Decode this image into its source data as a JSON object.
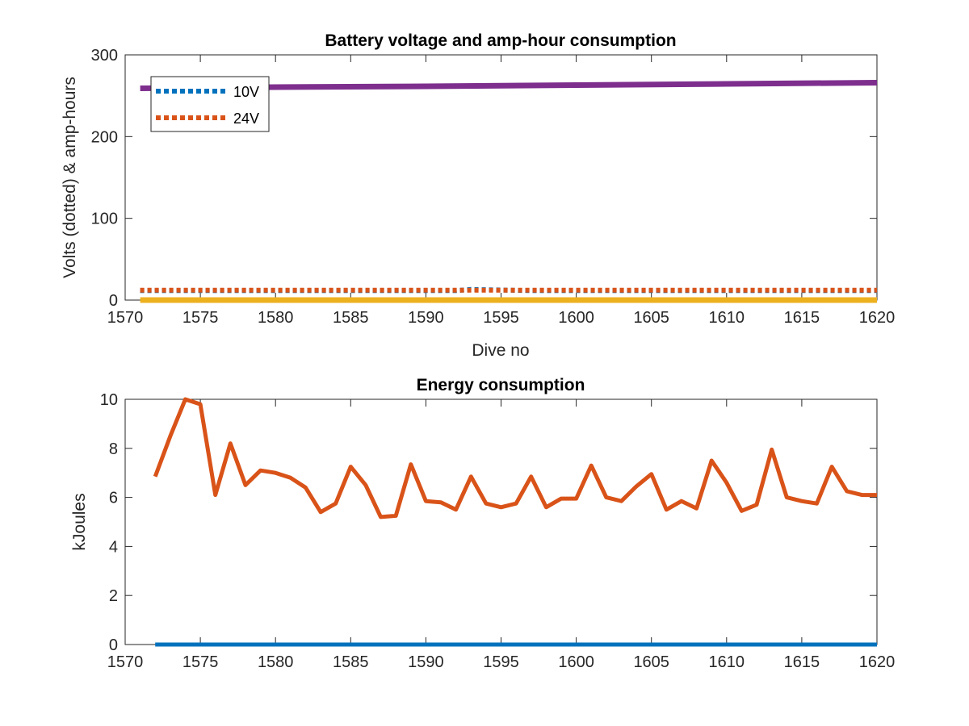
{
  "chart_data": [
    {
      "type": "line",
      "title": "Battery voltage and amp-hour consumption",
      "xlabel": "Dive no",
      "ylabel": "Volts (dotted) & amp-hours",
      "xlim": [
        1570,
        1620
      ],
      "ylim": [
        0,
        300
      ],
      "xticks": [
        1570,
        1575,
        1580,
        1585,
        1590,
        1595,
        1600,
        1605,
        1610,
        1615,
        1620
      ],
      "yticks": [
        0,
        100,
        200,
        300
      ],
      "legend_position": "top-left",
      "series": [
        {
          "name": "10V",
          "style": "dotted",
          "color": "#0072BD",
          "x": [
            1571,
            1592,
            1593,
            1597,
            1620
          ],
          "y": [
            11.5,
            11.5,
            13,
            11.5,
            11.5
          ]
        },
        {
          "name": "24V",
          "style": "dotted",
          "color": "#D95319",
          "x": [
            1571,
            1620
          ],
          "y": [
            12,
            12
          ]
        },
        {
          "style": "solid",
          "color": "#EDB120",
          "x": [
            1571,
            1620
          ],
          "y": [
            0,
            0
          ]
        },
        {
          "style": "solid",
          "color": "#7E2F8E",
          "x": [
            1571,
            1580,
            1590,
            1600,
            1610,
            1620
          ],
          "y": [
            259,
            260.5,
            261.5,
            263,
            264.5,
            266
          ]
        }
      ]
    },
    {
      "type": "line",
      "title": "Energy consumption",
      "xlabel": "",
      "ylabel": "kJoules",
      "xlim": [
        1570,
        1620
      ],
      "ylim": [
        0,
        10
      ],
      "xticks": [
        1570,
        1575,
        1580,
        1585,
        1590,
        1595,
        1600,
        1605,
        1610,
        1615,
        1620
      ],
      "yticks": [
        0,
        2,
        4,
        6,
        8,
        10
      ],
      "series": [
        {
          "style": "solid",
          "color": "#0072BD",
          "x": [
            1572,
            1620
          ],
          "y": [
            0,
            0
          ]
        },
        {
          "style": "solid",
          "color": "#D95319",
          "x": [
            1572,
            1573,
            1574,
            1575,
            1576,
            1577,
            1578,
            1579,
            1580,
            1581,
            1582,
            1583,
            1584,
            1585,
            1586,
            1587,
            1588,
            1589,
            1590,
            1591,
            1592,
            1593,
            1594,
            1595,
            1596,
            1597,
            1598,
            1599,
            1600,
            1601,
            1602,
            1603,
            1604,
            1605,
            1606,
            1607,
            1608,
            1609,
            1610,
            1611,
            1612,
            1613,
            1614,
            1615,
            1616,
            1617,
            1618,
            1619,
            1620
          ],
          "y": [
            6.85,
            8.5,
            10,
            9.8,
            6.1,
            8.2,
            6.5,
            7.1,
            7.0,
            6.8,
            6.4,
            5.4,
            5.75,
            7.25,
            6.5,
            5.2,
            5.25,
            7.35,
            5.85,
            5.8,
            5.5,
            6.85,
            5.75,
            5.6,
            5.75,
            6.85,
            5.6,
            5.95,
            5.95,
            7.3,
            6.0,
            5.85,
            6.45,
            6.95,
            5.5,
            5.85,
            5.55,
            7.5,
            6.6,
            5.45,
            5.7,
            7.95,
            6.0,
            5.85,
            5.75,
            7.25,
            6.25,
            6.1,
            6.1
          ]
        }
      ]
    }
  ]
}
